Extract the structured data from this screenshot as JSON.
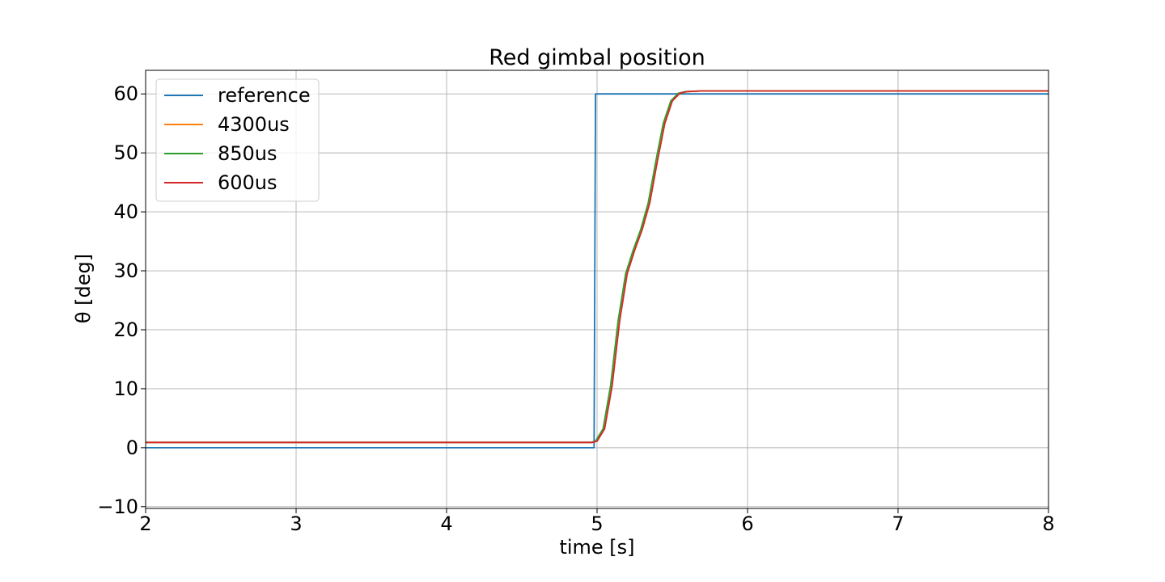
{
  "chart_data": {
    "type": "line",
    "title": "Red gimbal position",
    "xlabel": "time [s]",
    "ylabel": "θ [deg]",
    "xlim": [
      2,
      8
    ],
    "ylim": [
      -10.3,
      64
    ],
    "xticks": [
      2,
      3,
      4,
      5,
      6,
      7,
      8
    ],
    "xtick_labels": [
      "2",
      "3",
      "4",
      "5",
      "6",
      "7",
      "8"
    ],
    "yticks": [
      -10,
      0,
      10,
      20,
      30,
      40,
      50,
      60
    ],
    "ytick_labels": [
      "−10",
      "0",
      "10",
      "20",
      "30",
      "40",
      "50",
      "60"
    ],
    "grid": true,
    "legend_position": "upper-left",
    "series": [
      {
        "name": "reference",
        "color": "#1f77b4",
        "x": [
          2.0,
          4.98,
          4.99,
          8.0
        ],
        "y": [
          0,
          0,
          60,
          60
        ]
      },
      {
        "name": "4300us",
        "color": "#ff7f0e",
        "x": [
          2.0,
          3.0,
          4.0,
          4.97,
          5.0,
          5.05,
          5.1,
          5.15,
          5.2,
          5.25,
          5.3,
          5.35,
          5.4,
          5.45,
          5.5,
          5.55,
          5.6,
          5.7,
          6.0,
          7.0,
          8.0
        ],
        "y": [
          0.9,
          0.9,
          0.9,
          0.9,
          1.1,
          3.2,
          10.5,
          21.5,
          29.5,
          33.5,
          37.0,
          41.5,
          48.5,
          55.0,
          58.8,
          60.1,
          60.4,
          60.5,
          60.5,
          60.5,
          60.5
        ]
      },
      {
        "name": "850us",
        "color": "#2ca02c",
        "x": [
          2.0,
          3.0,
          4.0,
          4.96,
          4.99,
          5.04,
          5.09,
          5.14,
          5.19,
          5.24,
          5.29,
          5.34,
          5.39,
          5.44,
          5.49,
          5.54,
          5.59,
          5.69,
          6.0,
          7.0,
          8.0
        ],
        "y": [
          0.9,
          0.9,
          0.9,
          0.9,
          1.1,
          3.2,
          10.5,
          21.5,
          29.5,
          33.5,
          37.0,
          41.5,
          48.5,
          55.0,
          58.8,
          60.1,
          60.4,
          60.5,
          60.5,
          60.5,
          60.5
        ]
      },
      {
        "name": "600us",
        "color": "#d62728",
        "x": [
          2.0,
          3.0,
          4.0,
          4.97,
          5.0,
          5.05,
          5.1,
          5.15,
          5.2,
          5.25,
          5.3,
          5.35,
          5.4,
          5.45,
          5.5,
          5.55,
          5.6,
          5.7,
          6.0,
          7.0,
          8.0
        ],
        "y": [
          0.9,
          0.9,
          0.9,
          0.9,
          1.1,
          3.2,
          10.5,
          21.5,
          29.5,
          33.5,
          37.0,
          41.5,
          48.5,
          55.0,
          58.8,
          60.1,
          60.4,
          60.5,
          60.5,
          60.5,
          60.5
        ]
      }
    ]
  }
}
